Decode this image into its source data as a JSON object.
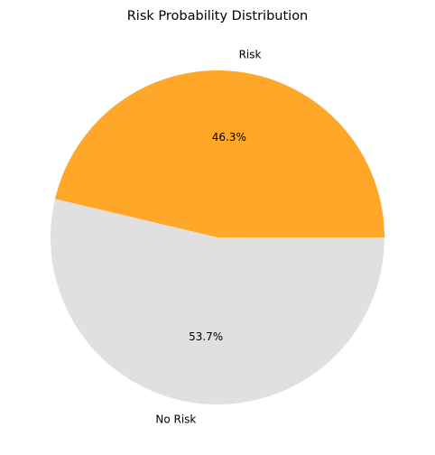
{
  "chart_data": {
    "type": "pie",
    "title": "Risk Probability Distribution",
    "categories": [
      "Risk",
      "No Risk"
    ],
    "values": [
      46.3,
      53.7
    ],
    "value_labels": [
      "46.3%",
      "53.7%"
    ],
    "colors": [
      "#ffa729",
      "#e0e0e0"
    ]
  }
}
